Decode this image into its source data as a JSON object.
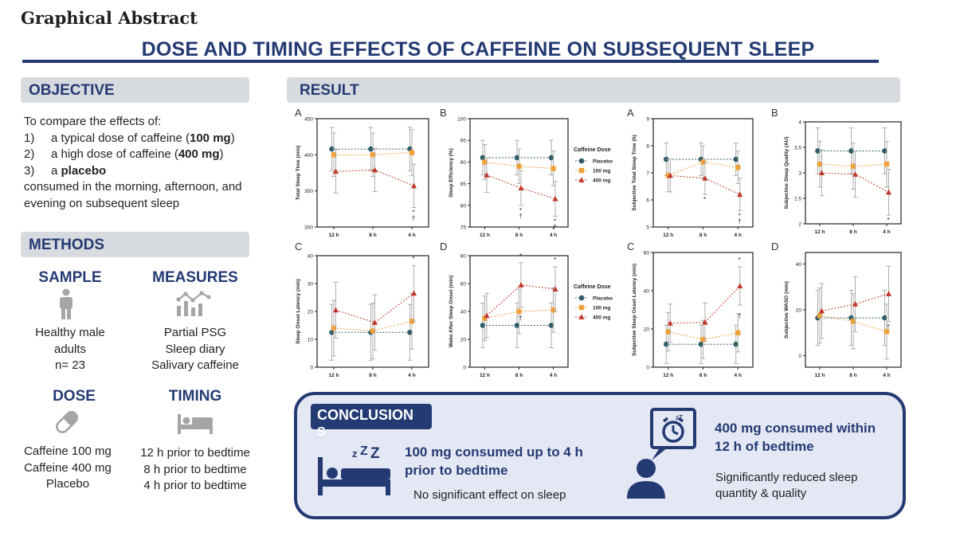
{
  "header": {
    "label": "Graphical Abstract",
    "title": "DOSE AND TIMING EFFECTS OF CAFFEINE ON SUBSEQUENT SLEEP"
  },
  "colors": {
    "navy": "#243a73",
    "placebo": "#2f5d68",
    "mg100": "#f0a23a",
    "mg400": "#c0392b",
    "gray": "#a5a5a5"
  },
  "objective": {
    "heading": "OBJECTIVE",
    "intro": "To compare the effects of:",
    "items": [
      {
        "num": "1)",
        "pre": "a typical dose of caffeine (",
        "bold": "100 mg",
        "post": ")"
      },
      {
        "num": "2)",
        "pre": "a high dose of caffeine (",
        "bold": "400 mg",
        "post": ")"
      },
      {
        "num": "3)",
        "pre": "a ",
        "bold": "placebo",
        "post": ""
      }
    ],
    "outro": "consumed in the morning, afternoon, and evening on subsequent sleep"
  },
  "methods": {
    "heading": "METHODS",
    "sample": {
      "title": "SAMPLE",
      "lines": [
        "Healthy male",
        "adults",
        "n= 23"
      ]
    },
    "measures": {
      "title": "MEASURES",
      "lines": [
        "Partial PSG",
        "Sleep diary",
        "Salivary caffeine"
      ]
    },
    "dose": {
      "title": "DOSE",
      "lines": [
        "Caffeine 100 mg",
        "Caffeine 400 mg",
        "Placebo"
      ]
    },
    "timing": {
      "title": "TIMING",
      "lines": [
        "12 h prior to bedtime",
        "8 h prior to bedtime",
        "4 h prior to bedtime"
      ]
    }
  },
  "result": {
    "heading": "RESULT"
  },
  "legend": {
    "title": "Caffeine Dose",
    "items": [
      "Placebo",
      "100 mg",
      "400 mg"
    ]
  },
  "chart_data": [
    {
      "panel": "A",
      "type": "line",
      "ylabel": "Total Sleep Time (min)",
      "ylim": [
        300,
        450
      ],
      "yticks": [
        300,
        350,
        400,
        450
      ],
      "categories": [
        "12 h",
        "8 h",
        "4 h"
      ],
      "series": [
        {
          "name": "Placebo",
          "values": [
            408,
            408,
            408
          ],
          "err": [
            30,
            30,
            30
          ]
        },
        {
          "name": "100 mg",
          "values": [
            400,
            400,
            403
          ],
          "err": [
            30,
            30,
            32
          ]
        },
        {
          "name": "400 mg",
          "values": [
            377,
            379,
            357
          ],
          "err": [
            30,
            30,
            30
          ]
        }
      ],
      "annotations": [
        {
          "x": "4 h",
          "text": "*"
        },
        {
          "x": "4 h",
          "text": "†"
        }
      ]
    },
    {
      "panel": "B",
      "type": "line",
      "ylabel": "Sleep Efficiency (%)",
      "ylim": [
        75,
        100
      ],
      "yticks": [
        75,
        80,
        85,
        90,
        95,
        100
      ],
      "categories": [
        "12 h",
        "8 h",
        "4 h"
      ],
      "series": [
        {
          "name": "Placebo",
          "values": [
            91,
            91,
            91
          ],
          "err": [
            4,
            4,
            4
          ]
        },
        {
          "name": "100 mg",
          "values": [
            90,
            89,
            88.5
          ],
          "err": [
            4,
            4,
            4
          ]
        },
        {
          "name": "400 mg",
          "values": [
            87,
            84,
            81.5
          ],
          "err": [
            4,
            4,
            4
          ]
        }
      ],
      "annotations": [
        {
          "x": "8 h",
          "text": "*"
        },
        {
          "x": "8 h",
          "text": "†"
        },
        {
          "x": "4 h",
          "text": "*"
        },
        {
          "x": "4 h",
          "text": "†"
        }
      ]
    },
    {
      "panel": "A",
      "type": "line",
      "ylabel": "Subjective Total Sleep Time (h)",
      "ylim": [
        5,
        9
      ],
      "yticks": [
        5,
        6,
        7,
        8,
        9
      ],
      "categories": [
        "12 h",
        "8 h",
        "4 h"
      ],
      "series": [
        {
          "name": "Placebo",
          "values": [
            7.5,
            7.5,
            7.5
          ],
          "err": [
            0.6,
            0.6,
            0.6
          ]
        },
        {
          "name": "100 mg",
          "values": [
            6.9,
            7.4,
            7.2
          ],
          "err": [
            0.6,
            0.6,
            0.6
          ]
        },
        {
          "name": "400 mg",
          "values": [
            6.9,
            6.8,
            6.2
          ],
          "err": [
            0.6,
            0.6,
            0.6
          ]
        }
      ],
      "annotations": [
        {
          "x": "8 h",
          "text": "*"
        },
        {
          "x": "4 h",
          "text": "*"
        },
        {
          "x": "4 h",
          "text": "†"
        }
      ]
    },
    {
      "panel": "B",
      "type": "line",
      "ylabel": "Subjective Sleep Quality (AU)",
      "ylim": [
        2.0,
        4.0
      ],
      "yticks": [
        2.0,
        2.5,
        3.0,
        3.5,
        4.0
      ],
      "categories": [
        "12 h",
        "8 h",
        "4 h"
      ],
      "series": [
        {
          "name": "Placebo",
          "values": [
            3.43,
            3.43,
            3.43
          ],
          "err": [
            0.45,
            0.45,
            0.45
          ]
        },
        {
          "name": "100 mg",
          "values": [
            3.17,
            3.13,
            3.17
          ],
          "err": [
            0.45,
            0.45,
            0.45
          ]
        },
        {
          "name": "400 mg",
          "values": [
            3.0,
            2.97,
            2.62
          ],
          "err": [
            0.45,
            0.45,
            0.45
          ]
        }
      ],
      "annotations": [
        {
          "x": "4 h",
          "text": "*"
        }
      ]
    },
    {
      "panel": "C",
      "type": "line",
      "ylabel": "Sleep Onset Latency (min)",
      "ylim": [
        0,
        40
      ],
      "yticks": [
        0,
        10,
        20,
        30,
        40
      ],
      "categories": [
        "12 h",
        "8 h",
        "4 h"
      ],
      "series": [
        {
          "name": "Placebo",
          "values": [
            12.5,
            12.5,
            12.5
          ],
          "err": [
            10,
            10,
            10
          ]
        },
        {
          "name": "100 mg",
          "values": [
            14,
            13,
            16.5
          ],
          "err": [
            10,
            10,
            10
          ]
        },
        {
          "name": "400 mg",
          "values": [
            20.5,
            16,
            26.5
          ],
          "err": [
            10,
            10,
            10
          ]
        }
      ],
      "annotations": [
        {
          "x": "4 h",
          "text": "*"
        }
      ]
    },
    {
      "panel": "D",
      "type": "line",
      "ylabel": "Wake After Sleep Onset (min)",
      "ylim": [
        0,
        80
      ],
      "yticks": [
        0,
        20,
        40,
        60,
        80
      ],
      "categories": [
        "12 h",
        "8 h",
        "4 h"
      ],
      "series": [
        {
          "name": "Placebo",
          "values": [
            30,
            30,
            30
          ],
          "err": [
            16,
            16,
            16
          ]
        },
        {
          "name": "100 mg",
          "values": [
            35,
            40,
            41
          ],
          "err": [
            16,
            16,
            16
          ]
        },
        {
          "name": "400 mg",
          "values": [
            37,
            59,
            56
          ],
          "err": [
            16,
            16,
            16
          ]
        }
      ],
      "annotations": [
        {
          "x": "8 h",
          "text": "*"
        },
        {
          "x": "8 h",
          "text": "†"
        },
        {
          "x": "4 h",
          "text": "*"
        }
      ]
    },
    {
      "panel": "C",
      "type": "line",
      "ylabel": "Subjective Sleep Onset Latency (min)",
      "ylim": [
        0,
        60
      ],
      "yticks": [
        0,
        20,
        40,
        60
      ],
      "categories": [
        "12 h",
        "8 h",
        "4 h"
      ],
      "series": [
        {
          "name": "Placebo",
          "values": [
            12,
            12,
            12
          ],
          "err": [
            10,
            10,
            10
          ]
        },
        {
          "name": "100 mg",
          "values": [
            18.5,
            14.5,
            18
          ],
          "err": [
            10,
            10,
            10
          ]
        },
        {
          "name": "400 mg",
          "values": [
            23,
            23.5,
            42.5
          ],
          "err": [
            10,
            10,
            10
          ]
        }
      ],
      "annotations": [
        {
          "x": "4 h",
          "text": "*"
        },
        {
          "x": "4 h",
          "text": "†"
        }
      ]
    },
    {
      "panel": "D",
      "type": "line",
      "ylabel": "Subjective WASO (min)",
      "ylim": [
        -5,
        45
      ],
      "yticks": [
        0,
        20,
        40
      ],
      "categories": [
        "12 h",
        "8 h",
        "4 h"
      ],
      "series": [
        {
          "name": "Placebo",
          "values": [
            16.5,
            16.5,
            16.5
          ],
          "err": [
            12,
            12,
            12
          ]
        },
        {
          "name": "100 mg",
          "values": [
            17.5,
            15,
            10.5
          ],
          "err": [
            12,
            12,
            12
          ]
        },
        {
          "name": "400 mg",
          "values": [
            19.5,
            22.5,
            27
          ],
          "err": [
            12,
            12,
            12
          ]
        }
      ],
      "annotations": [
        {
          "x": "4 h",
          "text": "†"
        }
      ]
    }
  ],
  "conclusion": {
    "heading_line1": "CONCLUSION",
    "heading_line2": "S",
    "left_heading": "100 mg consumed up to 4 h prior to bedtime",
    "left_sub": "No significant effect on sleep",
    "right_heading": "400 mg consumed within 12 h of bedtime",
    "right_sub": "Significantly reduced sleep quantity & quality"
  }
}
